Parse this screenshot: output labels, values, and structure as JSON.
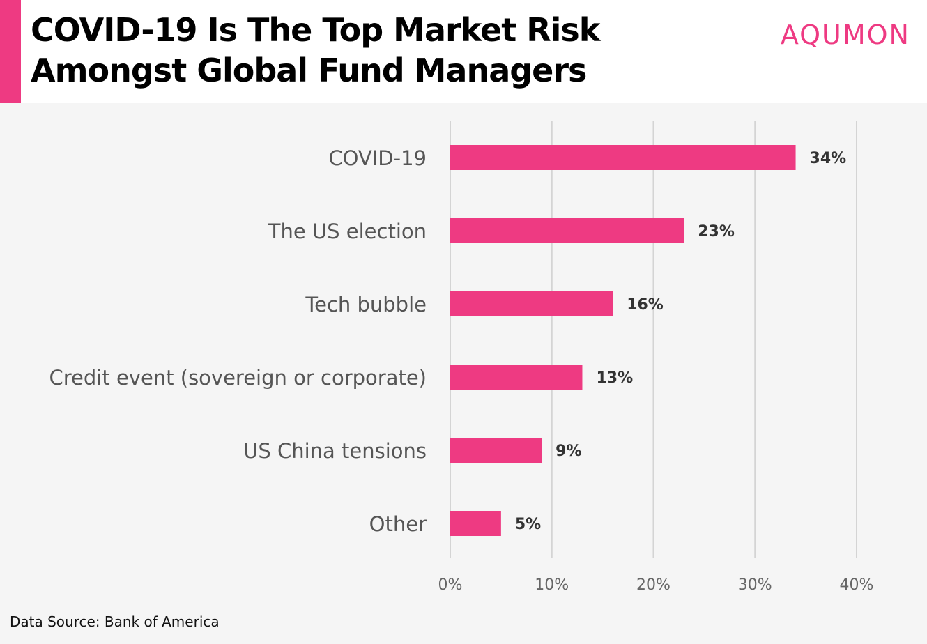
{
  "header": {
    "title": "COVID-19 Is The Top Market Risk Amongst Global Fund Managers",
    "brand": "AQUMON"
  },
  "colors": {
    "accent": "#ee3a82",
    "bar": "#ee3a82",
    "grid": "#d4d4d4",
    "category_text": "#555555",
    "value_text": "#333333",
    "tick_text": "#666666"
  },
  "chart_data": {
    "type": "bar",
    "orientation": "horizontal",
    "categories": [
      "COVID-19",
      "The US election",
      "Tech bubble",
      "Credit event (sovereign or corporate)",
      "US China tensions",
      "Other"
    ],
    "values": [
      34,
      23,
      16,
      13,
      9,
      5
    ],
    "value_labels": [
      "34%",
      "23%",
      "16%",
      "13%",
      "9%",
      "5%"
    ],
    "xlim": [
      0,
      40
    ],
    "x_ticks": [
      0,
      10,
      20,
      30,
      40
    ],
    "x_tick_labels": [
      "0%",
      "10%",
      "20%",
      "30%",
      "40%"
    ],
    "grid": true
  },
  "footer": {
    "source": "Data Source: Bank of America"
  }
}
